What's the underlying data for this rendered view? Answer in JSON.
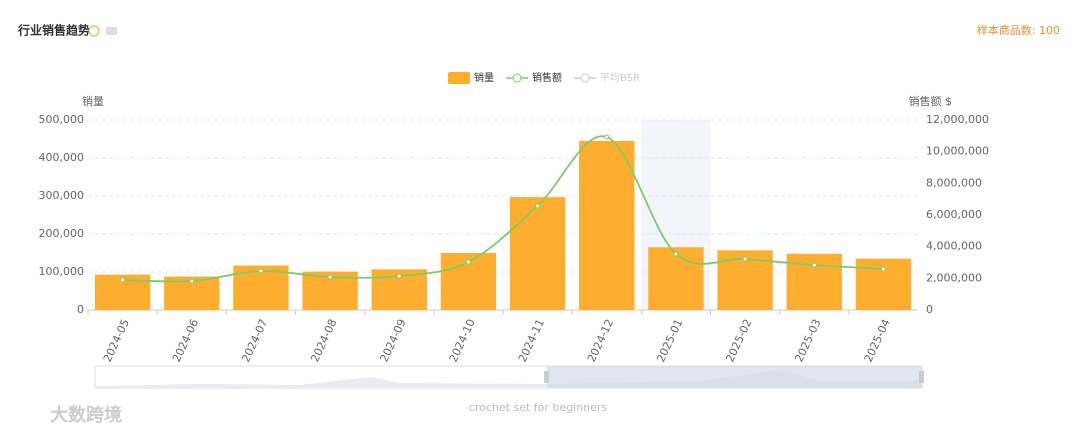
{
  "header": {
    "title": "行业销售趋势",
    "sample": "样本商品数: 100"
  },
  "chart_data": {
    "type": "bar_line",
    "ylabel": "销量",
    "y2label": "销售额 $",
    "categories": [
      "2024-05",
      "2024-06",
      "2024-07",
      "2024-08",
      "2024-09",
      "2024-10",
      "2024-11",
      "2024-12",
      "2025-01",
      "2025-02",
      "2025-03",
      "2025-04"
    ],
    "series": [
      {
        "name": "销量",
        "color": "#ffad2e",
        "type": "bar",
        "values": [
          93000,
          88000,
          117000,
          101000,
          107000,
          150000,
          297000,
          445000,
          165000,
          157000,
          148000,
          135000
        ]
      },
      {
        "name": "销售额",
        "color": "#7ccd65",
        "type": "line",
        "axis": "y2",
        "values": [
          1900000,
          1830000,
          2460000,
          2080000,
          2150000,
          3030000,
          6570000,
          10930000,
          3540000,
          3220000,
          2840000,
          2590000
        ]
      },
      {
        "name": "平均BSR",
        "color": "#cccccc",
        "type": "line",
        "hidden": true
      }
    ],
    "ylim": [
      0,
      500000
    ],
    "yticks": [
      0,
      {
        "value": 100000,
        "label": "100,000"
      },
      {
        "value": 200000,
        "label": "200,000"
      },
      {
        "value": 300000,
        "label": "300,000"
      },
      {
        "value": 400000,
        "label": "400,000"
      },
      {
        "value": 500000,
        "label": "500,000"
      }
    ],
    "y2lim": [
      0,
      12000000
    ],
    "y2ticks": [
      0,
      {
        "value": 2000000,
        "label": "2,000,000"
      },
      {
        "value": 4000000,
        "label": "4,000,000"
      },
      {
        "value": 6000000,
        "label": "6,000,000"
      },
      {
        "value": 8000000,
        "label": "8,000,000"
      },
      {
        "value": 10000000,
        "label": "10,000,000"
      },
      {
        "value": 12000000,
        "label": "12,000,000"
      }
    ],
    "grid": true,
    "highlight_category": "2025-01"
  },
  "zoom": {
    "label": "crochet set for beginners"
  },
  "watermark": "大数跨境"
}
